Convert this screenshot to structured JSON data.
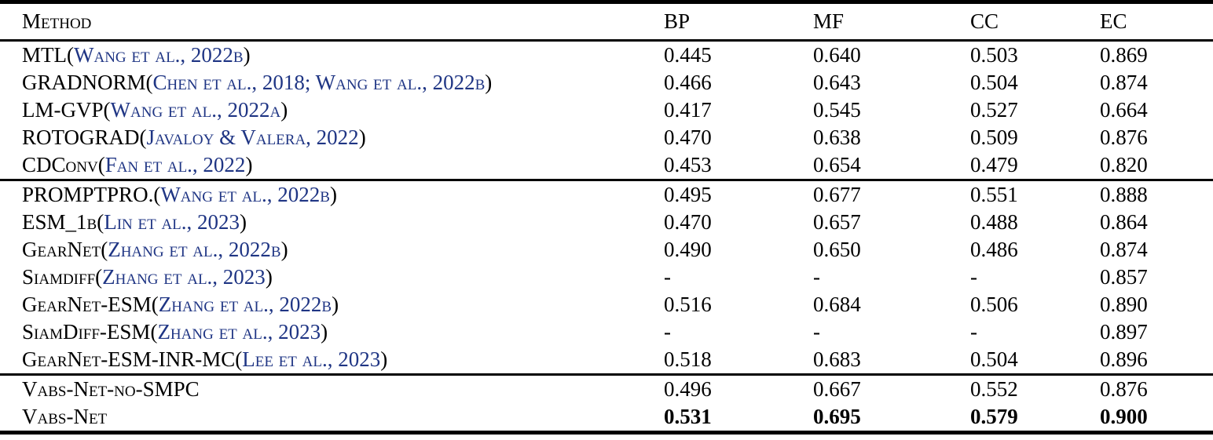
{
  "table": {
    "title": "Method comparison table",
    "headers": {
      "method": "Method",
      "bp": "BP",
      "mf": "MF",
      "cc": "CC",
      "ec": "EC"
    },
    "citation_color": "#1f3584",
    "groups": [
      {
        "rows": [
          {
            "name": "MTL",
            "cite": "Wang et al., 2022b",
            "values": [
              "0.445",
              "0.640",
              "0.503",
              "0.869"
            ],
            "bold": false
          },
          {
            "name": "GRADNORM",
            "cite": "Chen et al., 2018; Wang et al., 2022b",
            "values": [
              "0.466",
              "0.643",
              "0.504",
              "0.874"
            ],
            "bold": false
          },
          {
            "name": "LM-GVP",
            "cite": "Wang et al., 2022a",
            "values": [
              "0.417",
              "0.545",
              "0.527",
              "0.664"
            ],
            "bold": false
          },
          {
            "name": "ROTOGRAD",
            "cite": "Javaloy & Valera, 2022",
            "values": [
              "0.470",
              "0.638",
              "0.509",
              "0.876"
            ],
            "bold": false
          },
          {
            "name": "CDConv",
            "cite": "Fan et al., 2022",
            "values": [
              "0.453",
              "0.654",
              "0.479",
              "0.820"
            ],
            "bold": false
          }
        ]
      },
      {
        "rows": [
          {
            "name": "PROMPTPRO.",
            "cite": "Wang et al., 2022b",
            "values": [
              "0.495",
              "0.677",
              "0.551",
              "0.888"
            ],
            "bold": false
          },
          {
            "name": "ESM_1b",
            "cite": "Lin et al., 2023",
            "values": [
              "0.470",
              "0.657",
              "0.488",
              "0.864"
            ],
            "bold": false
          },
          {
            "name": "GearNet",
            "cite": "Zhang et al., 2022b",
            "values": [
              "0.490",
              "0.650",
              "0.486",
              "0.874"
            ],
            "bold": false
          },
          {
            "name": "Siamdiff",
            "cite": "Zhang et al., 2023",
            "values": [
              "-",
              "-",
              "-",
              "0.857"
            ],
            "bold": false
          },
          {
            "name": "GearNet-ESM",
            "cite": "Zhang et al., 2022b",
            "values": [
              "0.516",
              "0.684",
              "0.506",
              "0.890"
            ],
            "bold": false
          },
          {
            "name": "SiamDiff-ESM",
            "cite": "Zhang et al., 2023",
            "values": [
              "-",
              "-",
              "-",
              "0.897"
            ],
            "bold": false
          },
          {
            "name": "GearNet-ESM-INR-MC",
            "cite": "Lee et al., 2023",
            "values": [
              "0.518",
              "0.683",
              "0.504",
              "0.896"
            ],
            "bold": false
          }
        ]
      },
      {
        "rows": [
          {
            "name": "Vabs-Net-no-SMPC",
            "cite": null,
            "values": [
              "0.496",
              "0.667",
              "0.552",
              "0.876"
            ],
            "bold": false
          },
          {
            "name": "Vabs-Net",
            "cite": null,
            "values": [
              "0.531",
              "0.695",
              "0.579",
              "0.900"
            ],
            "bold": true
          }
        ]
      }
    ]
  }
}
